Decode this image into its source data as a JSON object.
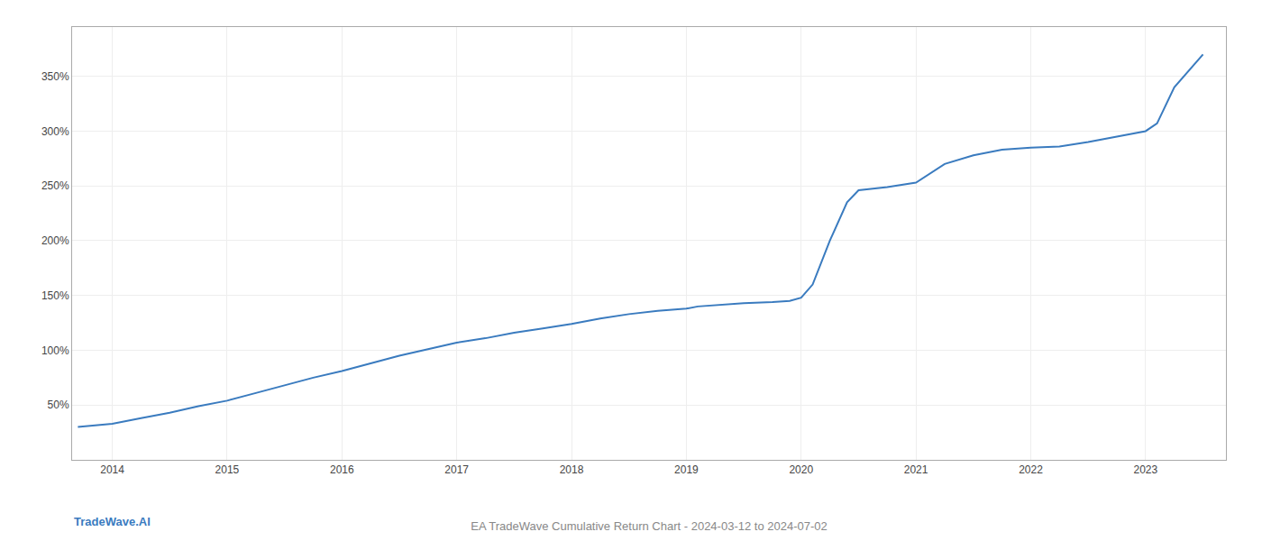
{
  "chart_data": {
    "type": "line",
    "title": "EA TradeWave Cumulative Return Chart - 2024-03-12 to 2024-07-02",
    "annotations": [
      "TradeWave.AI"
    ],
    "color": "#3a7bbf",
    "x": [
      2013.7,
      2014.0,
      2014.25,
      2014.5,
      2014.75,
      2015.0,
      2015.25,
      2015.5,
      2015.75,
      2016.0,
      2016.25,
      2016.5,
      2016.75,
      2017.0,
      2017.25,
      2017.5,
      2017.75,
      2018.0,
      2018.25,
      2018.5,
      2018.75,
      2019.0,
      2019.1,
      2019.25,
      2019.4,
      2019.5,
      2019.75,
      2019.9,
      2020.0,
      2020.1,
      2020.25,
      2020.4,
      2020.5,
      2020.75,
      2021.0,
      2021.25,
      2021.5,
      2021.75,
      2022.0,
      2022.25,
      2022.5,
      2022.75,
      2022.9,
      2023.0,
      2023.1,
      2023.25,
      2023.5
    ],
    "values": [
      30,
      33,
      38,
      43,
      49,
      54,
      61,
      68,
      75,
      81,
      88,
      95,
      101,
      107,
      111,
      116,
      120,
      124,
      129,
      133,
      136,
      138,
      140,
      141,
      142,
      143,
      144,
      145,
      148,
      160,
      200,
      235,
      246,
      249,
      253,
      270,
      278,
      283,
      285,
      286,
      290,
      295,
      298,
      300,
      307,
      340,
      370
    ],
    "xlim": [
      2013.65,
      2023.7
    ],
    "xticks": [
      2014,
      2015,
      2016,
      2017,
      2018,
      2019,
      2020,
      2021,
      2022,
      2023
    ],
    "ylim": [
      0,
      395
    ],
    "yticks": [
      {
        "value": 50,
        "label": "50%"
      },
      {
        "value": 100,
        "label": "100%"
      },
      {
        "value": 150,
        "label": "150%"
      },
      {
        "value": 200,
        "label": "200%"
      },
      {
        "value": 250,
        "label": "250%"
      },
      {
        "value": 300,
        "label": "300%"
      },
      {
        "value": 350,
        "label": "350%"
      }
    ],
    "grid": true
  }
}
